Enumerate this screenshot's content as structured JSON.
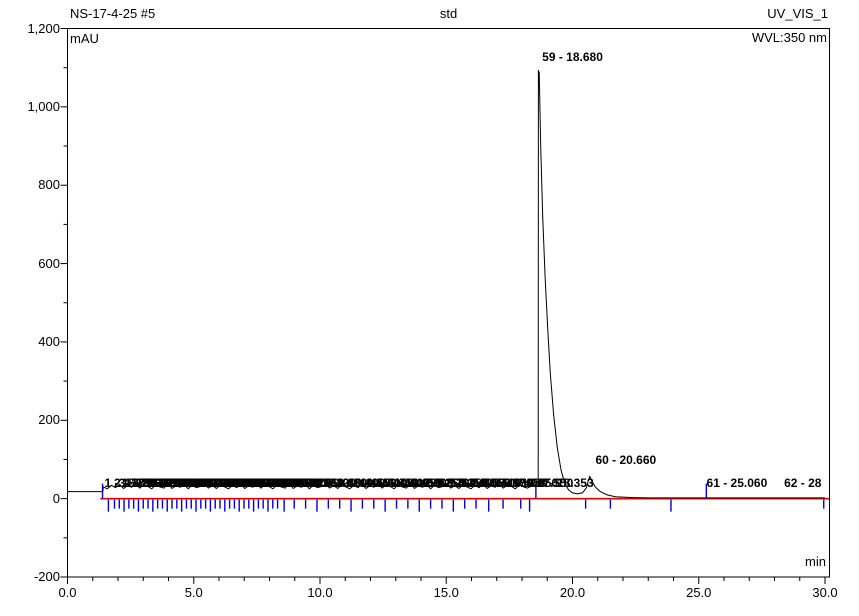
{
  "header": {
    "sample_name": "NS-17-4-25 #5",
    "injection_title": "std",
    "channel": "UV_VIS_1",
    "wavelength": "WVL:350 nm",
    "y_unit": "mAU",
    "x_unit": "min"
  },
  "chart_data": {
    "type": "line",
    "title": "std",
    "detector_channel": "UV_VIS_1",
    "wavelength": "WVL:350 nm",
    "xlabel": "min",
    "ylabel": "mAU",
    "x_range": [
      0,
      30
    ],
    "y_range": [
      -200,
      1200
    ],
    "x_major_step": 5,
    "x_minor_step": 1,
    "y_major_step": 200,
    "y_minor_step": 100,
    "x_ticks": [
      {
        "v": 0,
        "label": "0.0"
      },
      {
        "v": 5,
        "label": "5.0"
      },
      {
        "v": 10,
        "label": "10.0"
      },
      {
        "v": 15,
        "label": "15.0"
      },
      {
        "v": 20,
        "label": "20.0"
      },
      {
        "v": 25,
        "label": "25.0"
      },
      {
        "v": 30,
        "label": "30.0"
      }
    ],
    "y_ticks": [
      {
        "v": -200,
        "label": "-200"
      },
      {
        "v": 0,
        "label": "0"
      },
      {
        "v": 200,
        "label": "200"
      },
      {
        "v": 400,
        "label": "400"
      },
      {
        "v": 600,
        "label": "600"
      },
      {
        "v": 800,
        "label": "800"
      },
      {
        "v": 1000,
        "label": "1,000"
      },
      {
        "v": 1200,
        "label": "1,200"
      }
    ],
    "colors": {
      "trace": "#000000",
      "baseline": "#e60000",
      "delimiters": "#0000e0",
      "axis": "#000000"
    },
    "baseline": {
      "value": 0,
      "t_start": 1.3,
      "t_end": 30
    },
    "pre_noise_level": 18,
    "noise_band": {
      "t_start": 1.42,
      "t_end": 18.3,
      "step": 0.16,
      "pattern": [
        30,
        25,
        34,
        28,
        37,
        26,
        33,
        29,
        38,
        27,
        35,
        31,
        25,
        36,
        30,
        27,
        39,
        26,
        33,
        29,
        36,
        25,
        34,
        28,
        31,
        38,
        27,
        33,
        26,
        35
      ]
    },
    "trace_keypoints": [
      [
        18.4,
        33
      ],
      [
        18.55,
        36
      ],
      [
        18.64,
        45
      ],
      [
        18.65,
        1093
      ],
      [
        18.68,
        1088
      ],
      [
        18.74,
        900
      ],
      [
        18.82,
        720
      ],
      [
        18.92,
        560
      ],
      [
        19.02,
        430
      ],
      [
        19.12,
        320
      ],
      [
        19.25,
        215
      ],
      [
        19.4,
        130
      ],
      [
        19.55,
        72
      ],
      [
        19.7,
        38
      ],
      [
        19.85,
        22
      ],
      [
        20.0,
        15
      ],
      [
        20.2,
        12
      ],
      [
        20.4,
        15
      ],
      [
        20.55,
        28
      ],
      [
        20.62,
        45
      ],
      [
        20.68,
        57
      ],
      [
        20.76,
        46
      ],
      [
        20.9,
        30
      ],
      [
        21.1,
        18
      ],
      [
        21.35,
        10
      ],
      [
        21.7,
        5
      ],
      [
        22.3,
        3
      ],
      [
        23.0,
        2
      ],
      [
        25.0,
        2
      ],
      [
        28.0,
        2
      ],
      [
        30.0,
        2
      ]
    ],
    "labeled_peaks": [
      {
        "n": 59,
        "label": "59 - 18.680",
        "retention_min": 18.68,
        "apex_mau": 1093,
        "label_t": 18.72,
        "label_mau": 1142
      },
      {
        "n": 60,
        "label": "60 - 20.660",
        "retention_min": 20.66,
        "apex_mau": 57,
        "label_t": 20.83,
        "label_mau": 113
      },
      {
        "n": 61,
        "label": "61 - 25.060",
        "retention_min": 25.06,
        "apex_mau": 2,
        "label_t": 25.23,
        "label_mau": 54
      },
      {
        "n": 62,
        "label": "62 - 28",
        "retention_min": 28.26,
        "apex_mau": 2,
        "label_t": 28.3,
        "label_mau": 54
      }
    ],
    "cluster_label_mau": 54,
    "cluster_peak_times": [
      1.387,
      1.76,
      1.95,
      2.14,
      2.33,
      2.52,
      2.71,
      2.9,
      3.09,
      3.28,
      3.47,
      3.66,
      3.85,
      4.04,
      4.23,
      4.42,
      4.61,
      4.8,
      4.99,
      5.18,
      5.37,
      5.56,
      5.75,
      5.94,
      6.13,
      6.32,
      6.51,
      6.7,
      6.89,
      7.08,
      7.27,
      7.46,
      7.65,
      7.84,
      8.03,
      8.22,
      8.41,
      8.75,
      9.2,
      9.65,
      10.1,
      10.55,
      11.0,
      11.45,
      11.9,
      12.35,
      12.8,
      13.25,
      13.7,
      14.15,
      14.6,
      15.05,
      15.5,
      15.95,
      16.4,
      16.95,
      17.55,
      18.353
    ],
    "delimiter_ticks": {
      "down": [
        1.62,
        1.86,
        2.05,
        2.24,
        2.43,
        2.62,
        2.81,
        3.0,
        3.19,
        3.38,
        3.57,
        3.76,
        3.95,
        4.14,
        4.33,
        4.52,
        4.71,
        4.9,
        5.09,
        5.28,
        5.47,
        5.66,
        5.85,
        6.04,
        6.23,
        6.42,
        6.61,
        6.8,
        6.99,
        7.18,
        7.37,
        7.56,
        7.75,
        7.94,
        8.13,
        8.32,
        8.58,
        8.98,
        9.43,
        9.88,
        10.33,
        10.78,
        11.23,
        11.68,
        12.13,
        12.58,
        13.03,
        13.48,
        13.93,
        14.38,
        14.83,
        15.28,
        15.73,
        16.18,
        16.68,
        17.25,
        17.95,
        18.3,
        20.52,
        21.5,
        23.9,
        29.95
      ],
      "up": [
        1.387,
        18.55,
        25.3
      ]
    }
  }
}
